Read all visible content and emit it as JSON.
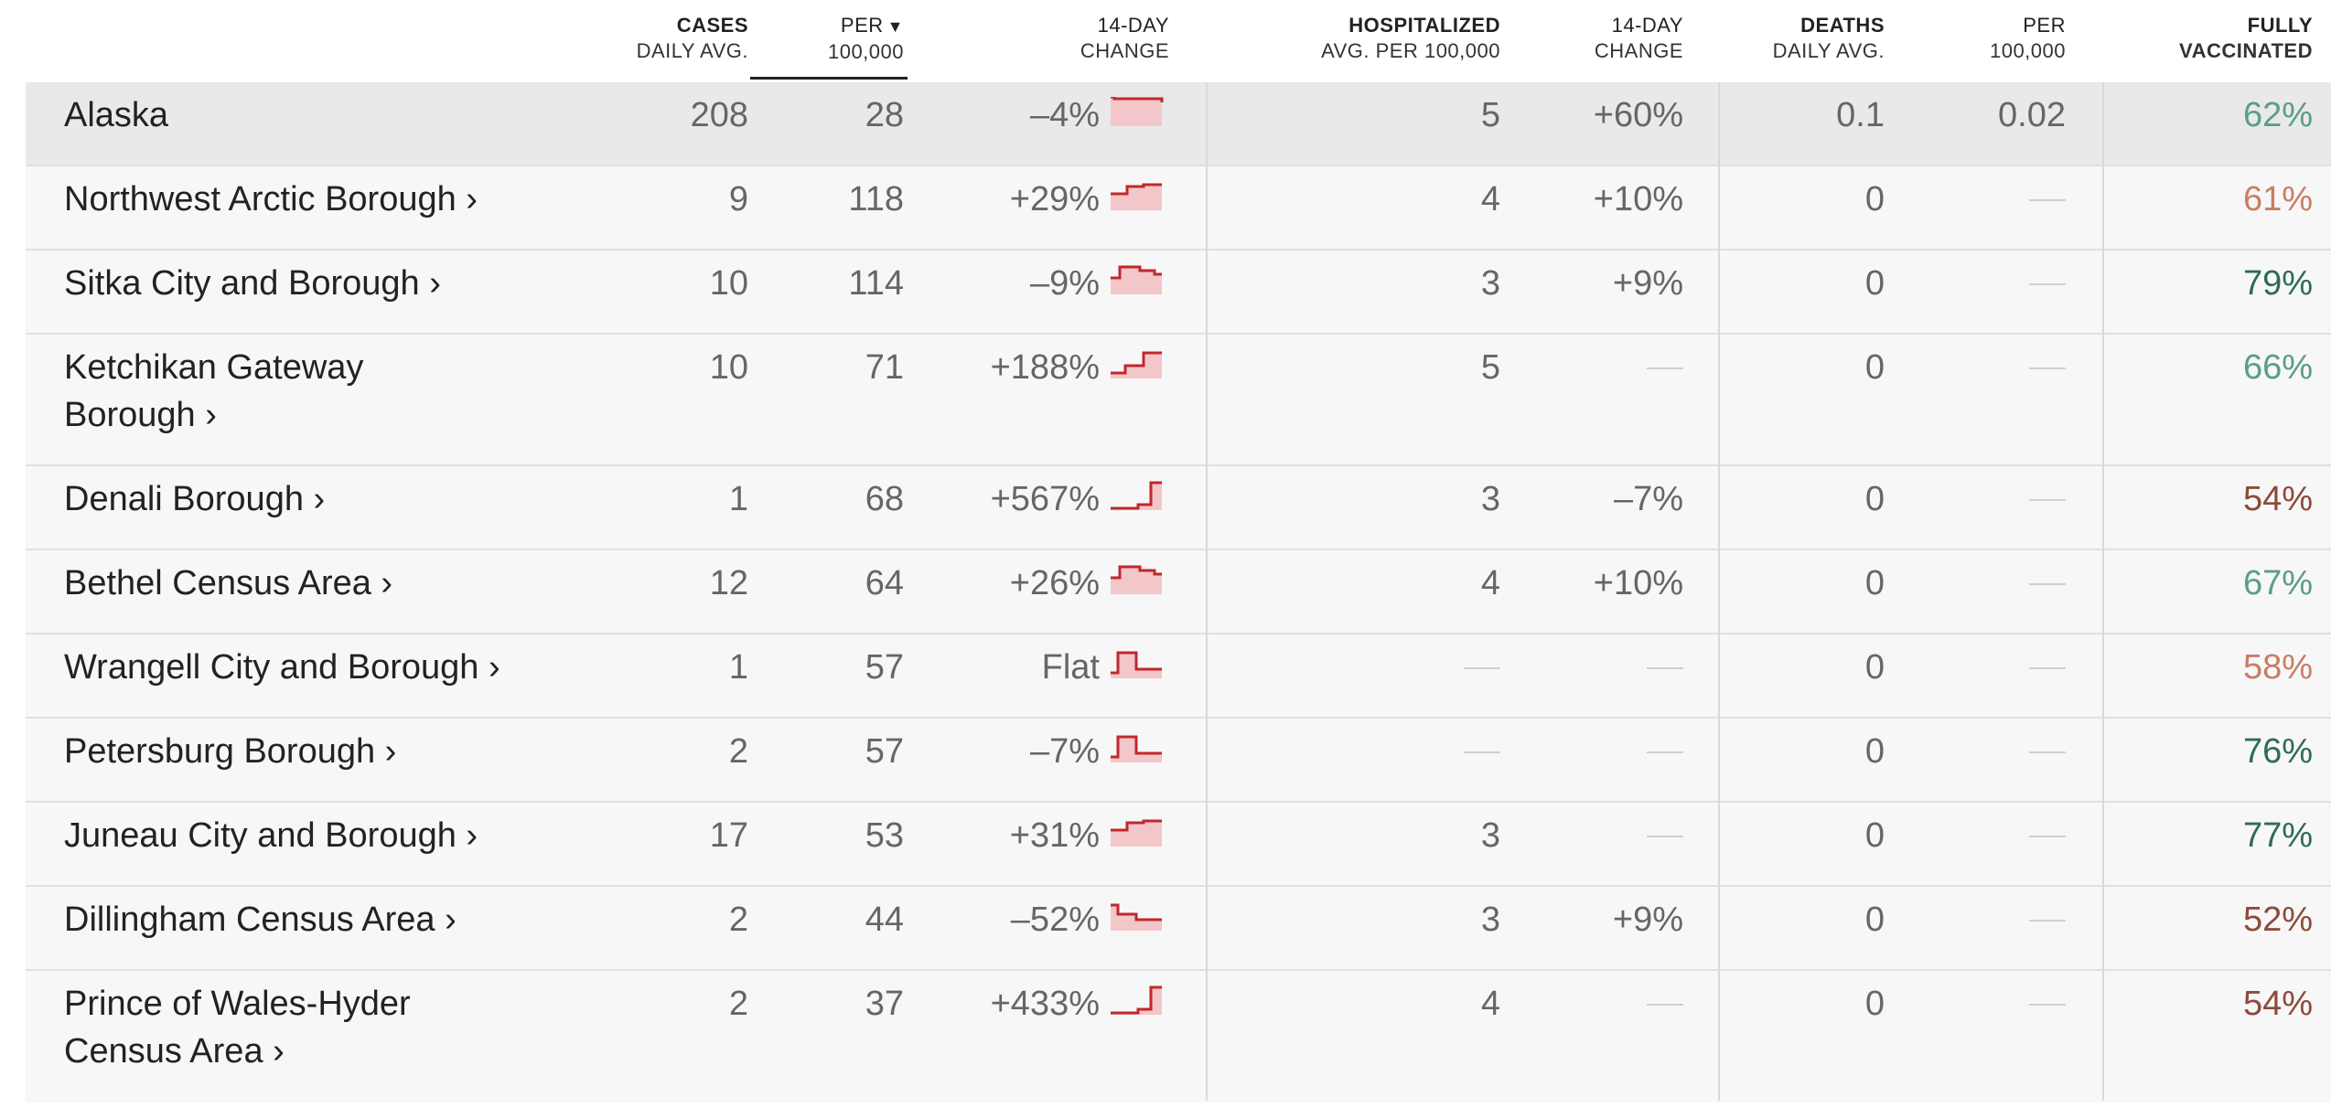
{
  "headers": {
    "cases": [
      "CASES",
      "DAILY AVG."
    ],
    "per": [
      "PER",
      "100,000"
    ],
    "change14": [
      "14-DAY",
      "CHANGE"
    ],
    "hosp": [
      "HOSPITALIZED",
      "AVG. PER 100,000"
    ],
    "hospchange": [
      "14-DAY",
      "CHANGE"
    ],
    "deaths": [
      "DEATHS",
      "DAILY AVG."
    ],
    "deathsper": [
      "PER",
      "100,000"
    ],
    "vacc": [
      "FULLY",
      "VACCINATED"
    ],
    "sort_icon": "sort-down-triangle"
  },
  "colors": {
    "spark_fill": "#f3c6c9",
    "spark_line": "#c0282c",
    "vacc_green_light": "#5a9e86",
    "vacc_green_dark": "#2e6b58",
    "vacc_orange": "#c97e61",
    "vacc_brown": "#8c4b3b"
  },
  "rows": [
    {
      "name": "Alaska",
      "link": false,
      "cases": "208",
      "per": "28",
      "change": "–4%",
      "spark": "down-slight",
      "hosp": "5",
      "hospchange": "+60%",
      "deaths": "0.1",
      "deathsper": "0.02",
      "vacc": "62%",
      "vacc_color": "#5a9e86"
    },
    {
      "name": "Northwest Arctic Borough ›",
      "link": true,
      "cases": "9",
      "per": "118",
      "change": "+29%",
      "spark": "up",
      "hosp": "4",
      "hospchange": "+10%",
      "deaths": "0",
      "deathsper": "—",
      "vacc": "61%",
      "vacc_color": "#c97e61"
    },
    {
      "name": "Sitka City and Borough ›",
      "link": true,
      "cases": "10",
      "per": "114",
      "change": "–9%",
      "spark": "hump",
      "hosp": "3",
      "hospchange": "+9%",
      "deaths": "0",
      "deathsper": "—",
      "vacc": "79%",
      "vacc_color": "#2e6b58"
    },
    {
      "name": "Ketchikan Gateway Borough ›",
      "link": true,
      "cases": "10",
      "per": "71",
      "change": "+188%",
      "spark": "step-up",
      "hosp": "5",
      "hospchange": "—",
      "deaths": "0",
      "deathsper": "—",
      "vacc": "66%",
      "vacc_color": "#5a9e86"
    },
    {
      "name": "Denali Borough ›",
      "link": true,
      "cases": "1",
      "per": "68",
      "change": "+567%",
      "spark": "spike-up",
      "hosp": "3",
      "hospchange": "–7%",
      "deaths": "0",
      "deathsper": "—",
      "vacc": "54%",
      "vacc_color": "#8c4b3b"
    },
    {
      "name": "Bethel Census Area ›",
      "link": true,
      "cases": "12",
      "per": "64",
      "change": "+26%",
      "spark": "hump",
      "hosp": "4",
      "hospchange": "+10%",
      "deaths": "0",
      "deathsper": "—",
      "vacc": "67%",
      "vacc_color": "#5a9e86"
    },
    {
      "name": "Wrangell City and Borough ›",
      "link": true,
      "cases": "1",
      "per": "57",
      "change": "Flat",
      "spark": "hump-drop",
      "hosp": "—",
      "hospchange": "—",
      "deaths": "0",
      "deathsper": "—",
      "vacc": "58%",
      "vacc_color": "#c97e61"
    },
    {
      "name": "Petersburg Borough ›",
      "link": true,
      "cases": "2",
      "per": "57",
      "change": "–7%",
      "spark": "hump-drop",
      "hosp": "—",
      "hospchange": "—",
      "deaths": "0",
      "deathsper": "—",
      "vacc": "76%",
      "vacc_color": "#2e6b58"
    },
    {
      "name": "Juneau City and Borough ›",
      "link": true,
      "cases": "17",
      "per": "53",
      "change": "+31%",
      "spark": "up",
      "hosp": "3",
      "hospchange": "—",
      "deaths": "0",
      "deathsper": "—",
      "vacc": "77%",
      "vacc_color": "#2e6b58"
    },
    {
      "name": "Dillingham Census Area ›",
      "link": true,
      "cases": "2",
      "per": "44",
      "change": "–52%",
      "spark": "down",
      "hosp": "3",
      "hospchange": "+9%",
      "deaths": "0",
      "deathsper": "—",
      "vacc": "52%",
      "vacc_color": "#8c4b3b"
    },
    {
      "name": "Prince of Wales-Hyder Census Area ›",
      "link": true,
      "cases": "2",
      "per": "37",
      "change": "+433%",
      "spark": "spike-up",
      "hosp": "4",
      "hospchange": "—",
      "deaths": "0",
      "deathsper": "—",
      "vacc": "54%",
      "vacc_color": "#8c4b3b"
    }
  ]
}
